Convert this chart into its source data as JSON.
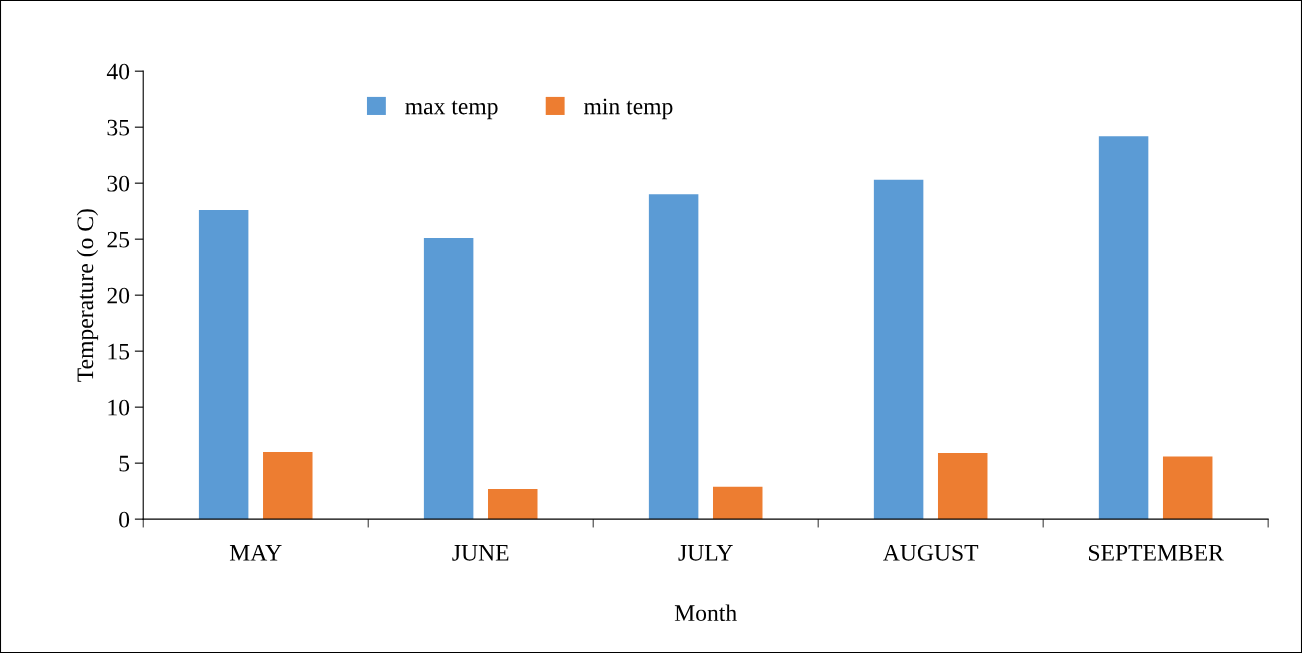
{
  "chart_data": {
    "type": "bar",
    "xlabel": "Month",
    "ylabel": "Temperature (o C)",
    "categories": [
      "MAY",
      "JUNE",
      "JULY",
      "AUGUST",
      "SEPTEMBER"
    ],
    "series": [
      {
        "name": "max temp",
        "color": "#5b9bd5",
        "values": [
          27.6,
          25.1,
          29.0,
          30.3,
          34.2
        ]
      },
      {
        "name": "min temp",
        "color": "#ed7d31",
        "values": [
          6.0,
          2.7,
          2.9,
          5.9,
          5.6
        ]
      }
    ],
    "ylim": [
      0,
      40
    ],
    "yticks": [
      0,
      5,
      10,
      15,
      20,
      25,
      30,
      35,
      40
    ],
    "grid": false,
    "legend": "top left"
  }
}
